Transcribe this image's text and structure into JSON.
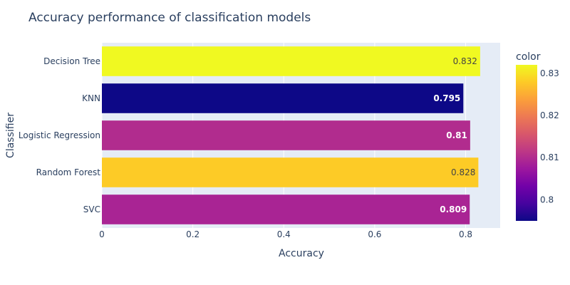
{
  "chart_data": {
    "type": "bar",
    "orientation": "horizontal",
    "title": "Accuracy performance of classification models",
    "xlabel": "Accuracy",
    "ylabel": "Classifier",
    "categories": [
      "Decision Tree",
      "KNN",
      "Logistic Regression",
      "Random Forest",
      "SVC"
    ],
    "values": [
      0.832,
      0.795,
      0.81,
      0.828,
      0.809
    ],
    "value_labels": [
      "0.832",
      "0.795",
      "0.81",
      "0.828",
      "0.809"
    ],
    "xlim": [
      0,
      0.876
    ],
    "xticks": [
      0,
      0.2,
      0.4,
      0.6,
      0.8
    ],
    "xtick_labels": [
      "0",
      "0.2",
      "0.4",
      "0.6",
      "0.8"
    ],
    "grid": true,
    "colorscale": "plasma",
    "colorbar": {
      "title": "color",
      "range": [
        0.795,
        0.832
      ],
      "ticks": [
        0.8,
        0.81,
        0.82,
        0.83
      ],
      "tick_labels": [
        "0.8",
        "0.81",
        "0.82",
        "0.83"
      ],
      "position": "right"
    },
    "colors": {
      "plot_bg": "#e5ecf6",
      "grid": "#ffffff",
      "text": "#2a3f5f"
    }
  }
}
